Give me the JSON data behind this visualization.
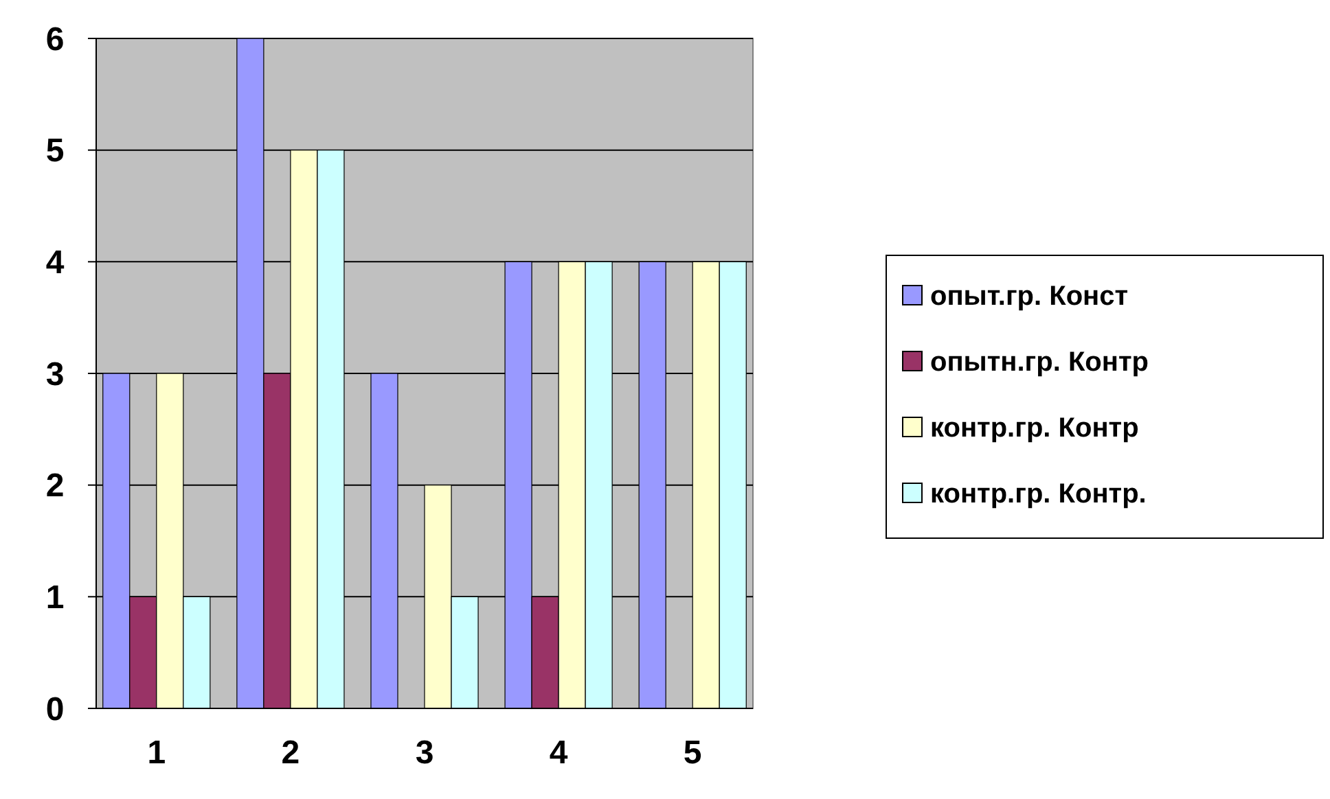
{
  "chart_data": {
    "type": "bar",
    "categories": [
      "1",
      "2",
      "3",
      "4",
      "5"
    ],
    "series": [
      {
        "name": "опыт.гр. Конст",
        "color": "#9999ff",
        "values": [
          3,
          6,
          3,
          4,
          4
        ]
      },
      {
        "name": "опытн.гр. Контр",
        "color": "#993366",
        "values": [
          1,
          3,
          0,
          1,
          0
        ]
      },
      {
        "name": "контр.гр. Контр",
        "color": "#ffffcc",
        "values": [
          3,
          5,
          2,
          4,
          4
        ]
      },
      {
        "name": "контр.гр. Контр.",
        "color": "#ccffff",
        "values": [
          1,
          5,
          1,
          4,
          4
        ]
      }
    ],
    "ylim": [
      0,
      6
    ],
    "yticks": [
      0,
      1,
      2,
      3,
      4,
      5,
      6
    ],
    "grid": "y",
    "legend": "right"
  }
}
